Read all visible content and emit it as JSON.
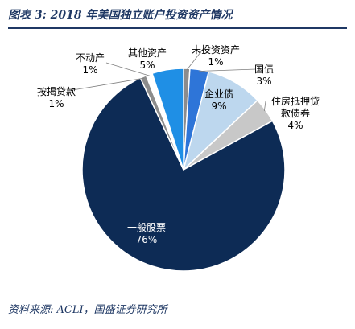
{
  "page": {
    "title": "图表 3:  2018 年美国独立账户投资资产情况",
    "source": "资料来源:  ACLI，国盛证券研究所"
  },
  "chart_data": {
    "type": "pie",
    "title": "图表 3:  2018 年美国独立账户投资资产情况",
    "slices": [
      {
        "label": "未投资资产",
        "value": 1,
        "value_label": "1%",
        "color": "#8c8c8c"
      },
      {
        "label": "国债",
        "value": 3,
        "value_label": "3%",
        "color": "#2e75d8"
      },
      {
        "label": "企业债",
        "value": 9,
        "value_label": "9%",
        "color": "#bdd7ee"
      },
      {
        "label": "住房抵押贷款债券",
        "label_lines": [
          "住房抵押贷",
          "款债券"
        ],
        "value": 4,
        "value_label": "4%",
        "color": "#c8c8c8"
      },
      {
        "label": "一般股票",
        "value": 76,
        "value_label": "76%",
        "color": "#0d2b55"
      },
      {
        "label": "按揭贷款",
        "value": 1,
        "value_label": "1%",
        "color": "#8c8c8c"
      },
      {
        "label": "不动产",
        "value": 1,
        "value_label": "1%",
        "color": "#ffffff"
      },
      {
        "label": "其他资产",
        "value": 5,
        "value_label": "5%",
        "color": "#1f8fe5"
      }
    ]
  }
}
